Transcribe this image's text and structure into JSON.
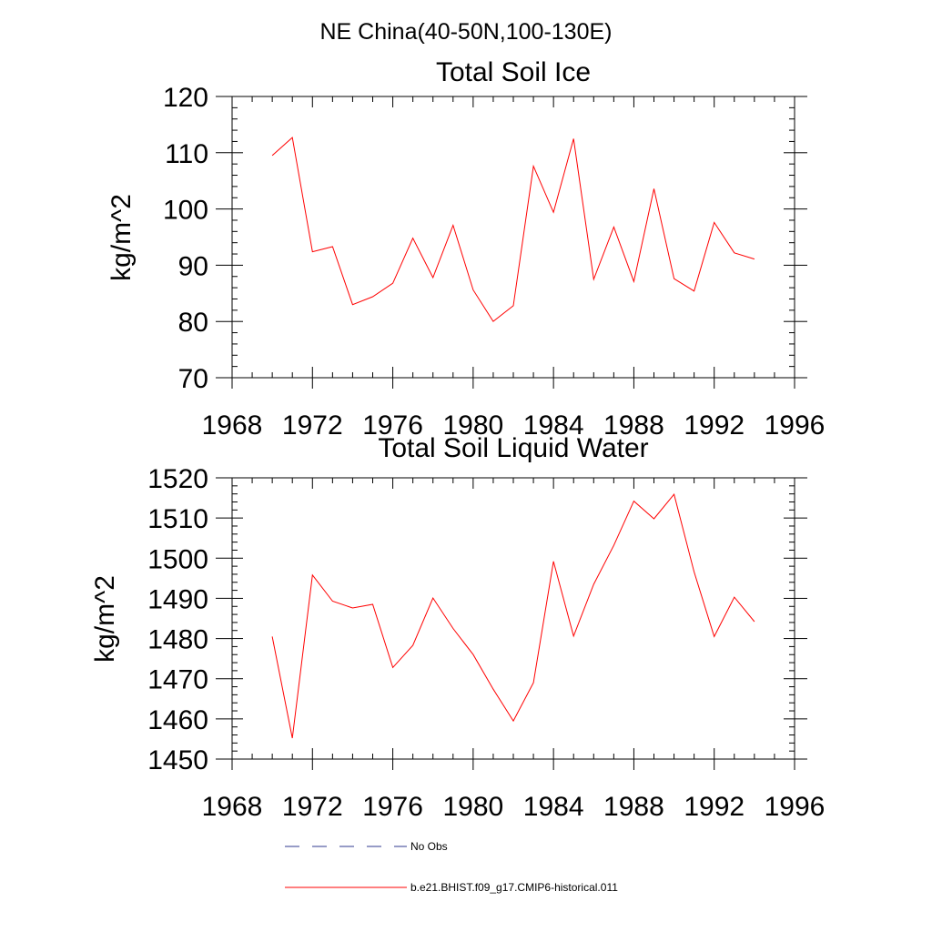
{
  "suptitle": "NE China(40-50N,100-130E)",
  "colors": {
    "model": "#ff0000",
    "obs": "#2f3a8f"
  },
  "legend": [
    {
      "label": "No Obs",
      "style": "dashed",
      "color": "#2f3a8f"
    },
    {
      "label": "b.e21.BHIST.f09_g17.CMIP6-historical.011",
      "style": "solid",
      "color": "#ff0000"
    }
  ],
  "chart_data": [
    {
      "type": "line",
      "title": "Total Soil Ice",
      "xlabel": "",
      "ylabel": "kg/m^2",
      "xlim": [
        1968,
        1996
      ],
      "ylim": [
        70,
        120
      ],
      "xticks": [
        1968,
        1972,
        1976,
        1980,
        1984,
        1988,
        1992,
        1996
      ],
      "yticks": [
        70,
        80,
        90,
        100,
        110,
        120
      ],
      "grid": false,
      "x": [
        1970,
        1971,
        1972,
        1973,
        1974,
        1975,
        1976,
        1977,
        1978,
        1979,
        1980,
        1981,
        1982,
        1983,
        1984,
        1985,
        1986,
        1987,
        1988,
        1989,
        1990,
        1991,
        1992,
        1993,
        1994
      ],
      "series": [
        {
          "name": "b.e21.BHIST.f09_g17.CMIP6-historical.011",
          "values": [
            109.5,
            112.7,
            92.4,
            93.3,
            83.0,
            84.4,
            86.8,
            94.8,
            87.8,
            97.1,
            85.6,
            80.0,
            82.8,
            107.6,
            99.4,
            112.5,
            87.5,
            96.8,
            87.1,
            103.6,
            87.6,
            85.4,
            97.6,
            92.2,
            91.1
          ]
        }
      ]
    },
    {
      "type": "line",
      "title": "Total Soil Liquid Water",
      "xlabel": "",
      "ylabel": "kg/m^2",
      "xlim": [
        1968,
        1996
      ],
      "ylim": [
        1450,
        1520
      ],
      "xticks": [
        1968,
        1972,
        1976,
        1980,
        1984,
        1988,
        1992,
        1996
      ],
      "yticks": [
        1450,
        1460,
        1470,
        1480,
        1490,
        1500,
        1510,
        1520
      ],
      "grid": false,
      "x": [
        1970,
        1971,
        1972,
        1973,
        1974,
        1975,
        1976,
        1977,
        1978,
        1979,
        1980,
        1981,
        1982,
        1983,
        1984,
        1985,
        1986,
        1987,
        1988,
        1989,
        1990,
        1991,
        1992,
        1993,
        1994
      ],
      "series": [
        {
          "name": "b.e21.BHIST.f09_g17.CMIP6-historical.011",
          "values": [
            1480.5,
            1455.2,
            1495.8,
            1489.3,
            1487.6,
            1488.5,
            1472.8,
            1478.3,
            1490.1,
            1482.5,
            1476.0,
            1467.4,
            1459.5,
            1469.0,
            1499.2,
            1480.6,
            1493.5,
            1503.2,
            1514.2,
            1509.8,
            1515.9,
            1496.6,
            1480.5,
            1490.3,
            1484.2
          ]
        }
      ]
    }
  ]
}
